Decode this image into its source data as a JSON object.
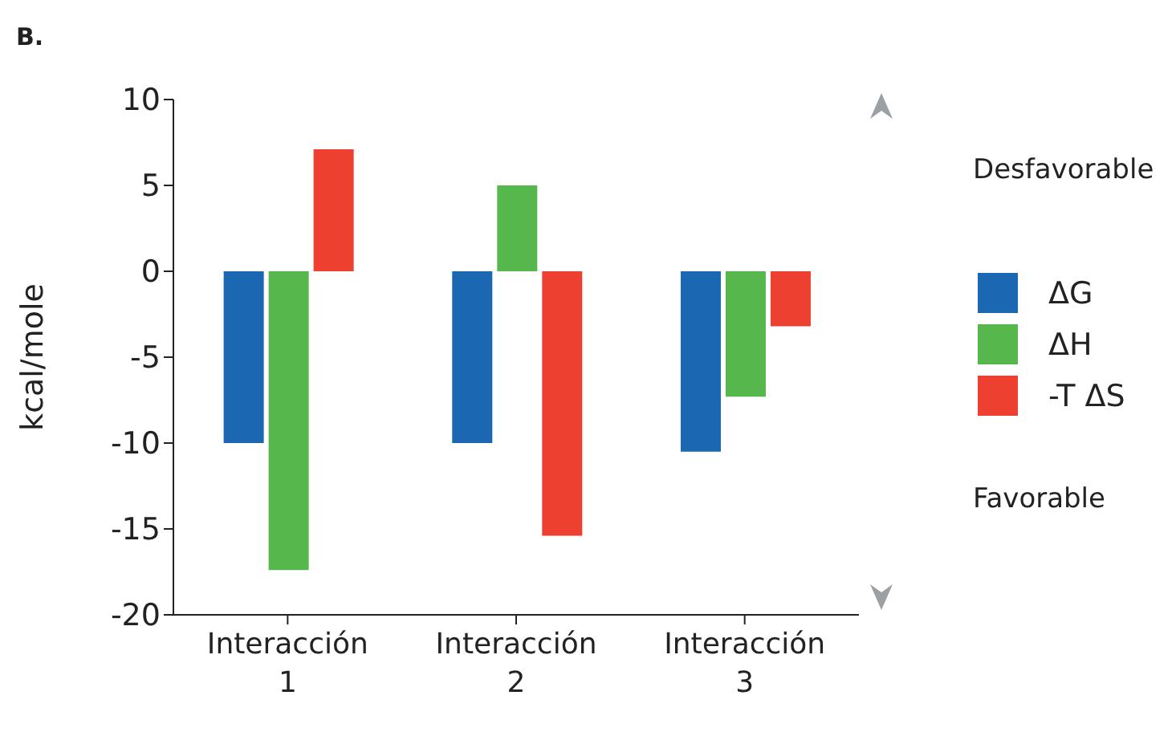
{
  "chart_data": {
    "type": "bar",
    "title": "B.",
    "ylabel": "kcal/mole",
    "categories": [
      "Interacción 1",
      "Interacción 2",
      "Interacción 3"
    ],
    "series": [
      {
        "name": "ΔG",
        "color": "#1b67b2",
        "values": [
          -10,
          -10,
          -10.5
        ]
      },
      {
        "name": "ΔH",
        "color": "#56b84c",
        "values": [
          -17.4,
          5,
          -7.3
        ]
      },
      {
        "name": "-T ΔS",
        "color": "#ee4030",
        "values": [
          7.1,
          -15.4,
          -3.2
        ]
      }
    ],
    "ylim": [
      -20,
      10
    ],
    "yticks": [
      -20,
      -15,
      -10,
      -5,
      0,
      5,
      10
    ],
    "grid": false,
    "legend": "right",
    "annotations": [
      "Desfavorable",
      "Favorable"
    ]
  }
}
